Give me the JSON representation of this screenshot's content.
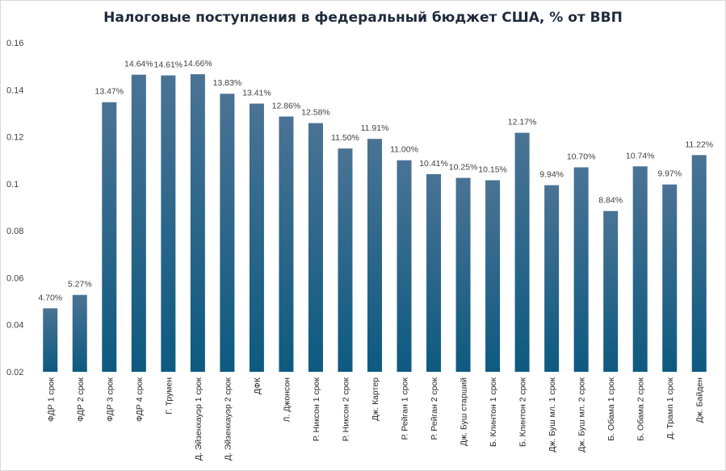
{
  "chart_data": {
    "type": "bar",
    "title": "Налоговые поступления в федеральный бюджет США, % от ВВП",
    "xlabel": "",
    "ylabel": "",
    "ylim": [
      0.02,
      0.16
    ],
    "y_ticks": [
      "0.02",
      "0.04",
      "0.06",
      "0.08",
      "0.1",
      "0.12",
      "0.14",
      "0.16"
    ],
    "grid": false,
    "categories": [
      "ФДР 1 срок",
      "ФДР 2 срок",
      "ФДР 3 срок",
      "ФДР 4 срок",
      "Г. Трумен",
      "Д. Эйзенхауэр 1 срок",
      "Д. Эйзенхауэр 2 срок",
      "ДФК",
      "Л. Джонсон",
      "Р. Никсон 1 срок",
      "Р. Никсон 2 срок",
      "Дж. Картер",
      "Р. Рейган 1 срок",
      "Р. Рейган 2 срок",
      "Дж. Буш старший",
      "Б. Клинтон 1 срок",
      "Б. Клинтон 2 срок",
      "Дж. Буш мл. 1 срок",
      "Дж. Буш мл. 2 срок",
      "Б. Обама 1 срок",
      "Б. Обама 2 срок",
      "Д. Трамп 1 срок",
      "Дж. Байден"
    ],
    "values": [
      0.047,
      0.0527,
      0.1347,
      0.1464,
      0.1461,
      0.1466,
      0.1383,
      0.1341,
      0.1286,
      0.1258,
      0.115,
      0.1191,
      0.11,
      0.1041,
      0.1025,
      0.1015,
      0.1217,
      0.0994,
      0.107,
      0.0884,
      0.1074,
      0.0997,
      0.1122
    ],
    "data_labels": [
      "4.70%",
      "5.27%",
      "13.47%",
      "14.64%",
      "14.61%",
      "14.66%",
      "13.83%",
      "13.41%",
      "12.86%",
      "12.58%",
      "11.50%",
      "11.91%",
      "11.00%",
      "10.41%",
      "10.25%",
      "10.15%",
      "12.17%",
      "9.94%",
      "10.70%",
      "8.84%",
      "10.74%",
      "9.97%",
      "11.22%"
    ],
    "colors": {
      "bar_top": "#4a7394",
      "bar_bottom": "#0d5a80",
      "text": "#404040",
      "title": "#1f2a3c"
    }
  }
}
